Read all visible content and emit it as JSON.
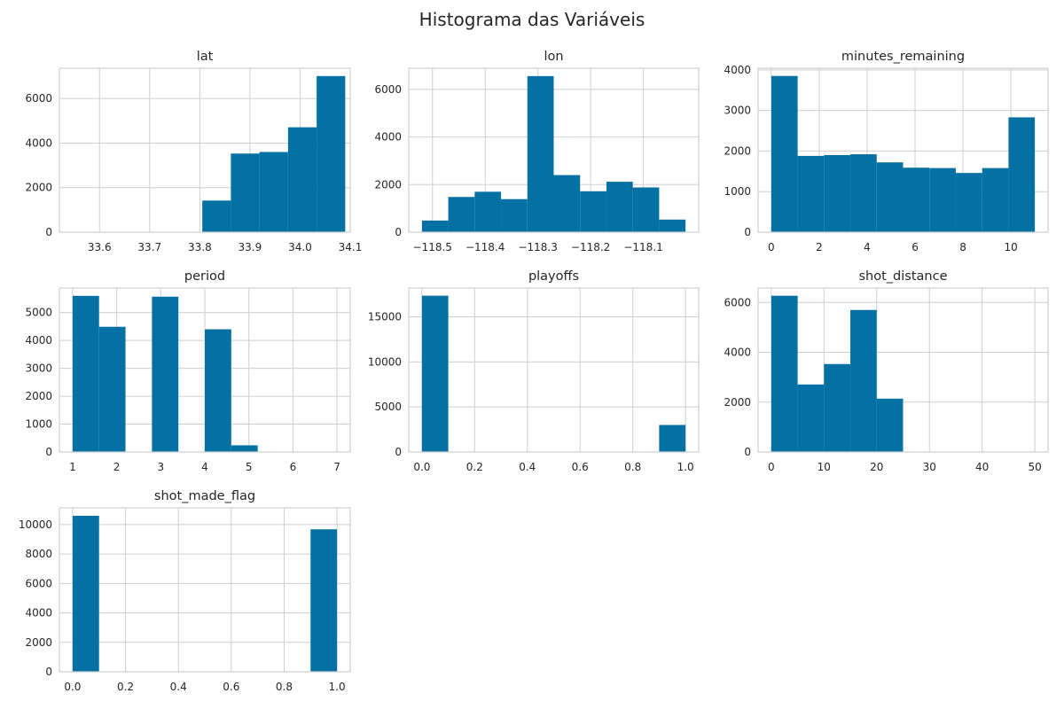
{
  "title": "Histograma das Variáveis",
  "colors": {
    "bar": "#0570a3",
    "grid": "#cfcfcf",
    "frame": "#cfcfcf",
    "text": "#262626"
  },
  "chart_data": [
    {
      "type": "bar",
      "title": "lat",
      "bins": [
        [
          33.52,
          33.577
        ],
        [
          33.577,
          33.634
        ],
        [
          33.634,
          33.691
        ],
        [
          33.691,
          33.748
        ],
        [
          33.748,
          33.805
        ],
        [
          33.805,
          33.862
        ],
        [
          33.862,
          33.919
        ],
        [
          33.919,
          33.976
        ],
        [
          33.976,
          34.033
        ],
        [
          34.033,
          34.09
        ]
      ],
      "values": [
        0,
        0,
        0,
        0,
        0,
        1420,
        3530,
        3600,
        4710,
        7010
      ],
      "xlim": [
        33.52,
        34.1
      ],
      "ylim": [
        0,
        7360
      ],
      "xticks": [
        33.6,
        33.7,
        33.8,
        33.9,
        34.0,
        34.1
      ],
      "xtick_labels": [
        "33.6",
        "33.7",
        "33.8",
        "33.9",
        "34.0",
        "34.1"
      ],
      "yticks": [
        0,
        2000,
        4000,
        6000
      ],
      "ytick_labels": [
        "0",
        "2000",
        "4000",
        "6000"
      ]
    },
    {
      "type": "bar",
      "title": "lon",
      "bins": [
        [
          -118.52,
          -118.47
        ],
        [
          -118.47,
          -118.42
        ],
        [
          -118.42,
          -118.37
        ],
        [
          -118.37,
          -118.32
        ],
        [
          -118.32,
          -118.27
        ],
        [
          -118.27,
          -118.22
        ],
        [
          -118.22,
          -118.17
        ],
        [
          -118.17,
          -118.12
        ],
        [
          -118.12,
          -118.07
        ],
        [
          -118.07,
          -118.02
        ]
      ],
      "values": [
        490,
        1480,
        1700,
        1390,
        6560,
        2400,
        1720,
        2120,
        1880,
        530
      ],
      "xlim": [
        -118.545,
        -117.995
      ],
      "ylim": [
        0,
        6890
      ],
      "xticks": [
        -118.5,
        -118.4,
        -118.3,
        -118.2,
        -118.1
      ],
      "xtick_labels": [
        "−118.5",
        "−118.4",
        "−118.3",
        "−118.2",
        "−118.1"
      ],
      "yticks": [
        0,
        2000,
        4000,
        6000
      ],
      "ytick_labels": [
        "0",
        "2000",
        "4000",
        "6000"
      ]
    },
    {
      "type": "bar",
      "title": "minutes_remaining",
      "bins": [
        [
          0,
          1.1
        ],
        [
          1.1,
          2.2
        ],
        [
          2.2,
          3.3
        ],
        [
          3.3,
          4.4
        ],
        [
          4.4,
          5.5
        ],
        [
          5.5,
          6.6
        ],
        [
          6.6,
          7.7
        ],
        [
          7.7,
          8.8
        ],
        [
          8.8,
          9.9
        ],
        [
          9.9,
          11
        ]
      ],
      "values": [
        3850,
        1880,
        1900,
        1920,
        1720,
        1590,
        1580,
        1460,
        1580,
        2830
      ],
      "xlim": [
        -0.55,
        11.55
      ],
      "ylim": [
        0,
        4040
      ],
      "xticks": [
        0,
        2,
        4,
        6,
        8,
        10
      ],
      "xtick_labels": [
        "0",
        "2",
        "4",
        "6",
        "8",
        "10"
      ],
      "yticks": [
        0,
        1000,
        2000,
        3000,
        4000
      ],
      "ytick_labels": [
        "0",
        "1000",
        "2000",
        "3000",
        "4000"
      ]
    },
    {
      "type": "bar",
      "title": "period",
      "bins": [
        [
          1,
          1.6
        ],
        [
          1.6,
          2.2
        ],
        [
          2.2,
          2.8
        ],
        [
          2.8,
          3.4
        ],
        [
          3.4,
          4.0
        ],
        [
          4.0,
          4.6
        ],
        [
          4.6,
          5.2
        ],
        [
          5.2,
          5.8
        ],
        [
          5.8,
          6.4
        ],
        [
          6.4,
          7.0
        ]
      ],
      "values": [
        5600,
        4490,
        0,
        5570,
        0,
        4400,
        240,
        0,
        0,
        0
      ],
      "xlim": [
        0.7,
        7.3
      ],
      "ylim": [
        0,
        5880
      ],
      "xticks": [
        1,
        2,
        3,
        4,
        5,
        6,
        7
      ],
      "xtick_labels": [
        "1",
        "2",
        "3",
        "4",
        "5",
        "6",
        "7"
      ],
      "yticks": [
        0,
        1000,
        2000,
        3000,
        4000,
        5000
      ],
      "ytick_labels": [
        "0",
        "1000",
        "2000",
        "3000",
        "4000",
        "5000"
      ]
    },
    {
      "type": "bar",
      "title": "playoffs",
      "bins": [
        [
          0,
          0.1
        ],
        [
          0.1,
          0.2
        ],
        [
          0.2,
          0.3
        ],
        [
          0.3,
          0.4
        ],
        [
          0.4,
          0.5
        ],
        [
          0.5,
          0.6
        ],
        [
          0.6,
          0.7
        ],
        [
          0.7,
          0.8
        ],
        [
          0.8,
          0.9
        ],
        [
          0.9,
          1.0
        ]
      ],
      "values": [
        17350,
        0,
        0,
        0,
        0,
        0,
        0,
        0,
        0,
        3000
      ],
      "xlim": [
        -0.05,
        1.05
      ],
      "ylim": [
        0,
        18200
      ],
      "xticks": [
        0,
        0.2,
        0.4,
        0.6,
        0.8,
        1.0
      ],
      "xtick_labels": [
        "0.0",
        "0.2",
        "0.4",
        "0.6",
        "0.8",
        "1.0"
      ],
      "yticks": [
        0,
        5000,
        10000,
        15000
      ],
      "ytick_labels": [
        "0",
        "5000",
        "10000",
        "15000"
      ]
    },
    {
      "type": "bar",
      "title": "shot_distance",
      "bins": [
        [
          0,
          5
        ],
        [
          5,
          10
        ],
        [
          10,
          15
        ],
        [
          15,
          20
        ],
        [
          20,
          25
        ],
        [
          25,
          30
        ],
        [
          30,
          35
        ],
        [
          35,
          40
        ],
        [
          40,
          45
        ],
        [
          45,
          50
        ]
      ],
      "values": [
        6270,
        2710,
        3530,
        5700,
        2140,
        0,
        0,
        0,
        0,
        0
      ],
      "xlim": [
        -2.5,
        52.5
      ],
      "ylim": [
        0,
        6580
      ],
      "xticks": [
        0,
        10,
        20,
        30,
        40,
        50
      ],
      "xtick_labels": [
        "0",
        "10",
        "20",
        "30",
        "40",
        "50"
      ],
      "yticks": [
        0,
        2000,
        4000,
        6000
      ],
      "ytick_labels": [
        "0",
        "2000",
        "4000",
        "6000"
      ]
    },
    {
      "type": "bar",
      "title": "shot_made_flag",
      "bins": [
        [
          0,
          0.1
        ],
        [
          0.1,
          0.2
        ],
        [
          0.2,
          0.3
        ],
        [
          0.3,
          0.4
        ],
        [
          0.4,
          0.5
        ],
        [
          0.5,
          0.6
        ],
        [
          0.6,
          0.7
        ],
        [
          0.7,
          0.8
        ],
        [
          0.8,
          0.9
        ],
        [
          0.9,
          1.0
        ]
      ],
      "values": [
        10600,
        0,
        0,
        0,
        0,
        0,
        0,
        0,
        0,
        9680
      ],
      "xlim": [
        -0.05,
        1.05
      ],
      "ylim": [
        0,
        11140
      ],
      "xticks": [
        0,
        0.2,
        0.4,
        0.6,
        0.8,
        1.0
      ],
      "xtick_labels": [
        "0.0",
        "0.2",
        "0.4",
        "0.6",
        "0.8",
        "1.0"
      ],
      "yticks": [
        0,
        2000,
        4000,
        6000,
        8000,
        10000
      ],
      "ytick_labels": [
        "0",
        "2000",
        "4000",
        "6000",
        "8000",
        "10000"
      ]
    }
  ]
}
